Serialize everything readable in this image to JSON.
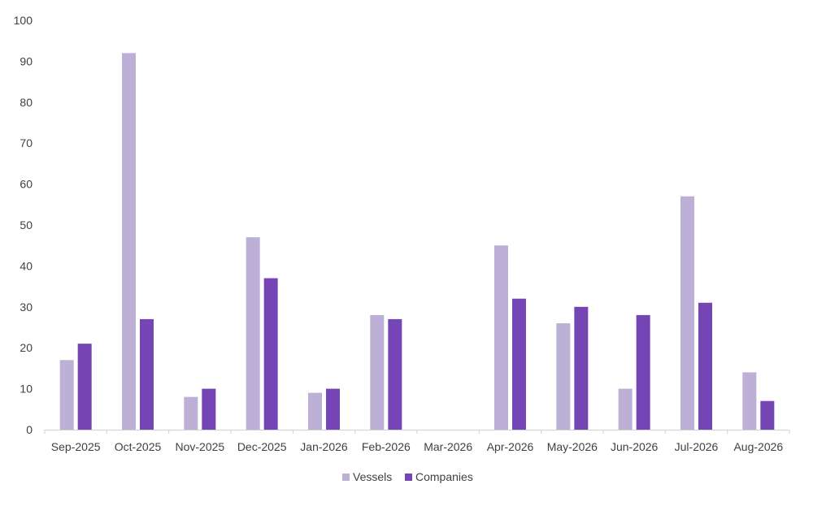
{
  "chart_data": {
    "type": "bar",
    "categories": [
      "Sep-2025",
      "Oct-2025",
      "Nov-2025",
      "Dec-2025",
      "Jan-2026",
      "Feb-2026",
      "Mar-2026",
      "Apr-2026",
      "May-2026",
      "Jun-2026",
      "Jul-2026",
      "Aug-2026"
    ],
    "series": [
      {
        "name": "Vessels",
        "color": "#bcb0d7",
        "values": [
          17,
          92,
          8,
          47,
          9,
          28,
          0,
          45,
          26,
          10,
          57,
          14
        ]
      },
      {
        "name": "Companies",
        "color": "#7545b5",
        "values": [
          21,
          27,
          10,
          37,
          10,
          27,
          0,
          32,
          30,
          28,
          31,
          7
        ]
      }
    ],
    "ylim": [
      0,
      100
    ],
    "yticks": [
      "0",
      "10",
      "20",
      "30",
      "40",
      "50",
      "60",
      "70",
      "80",
      "90",
      "100"
    ],
    "grid": false,
    "legend_position": "bottom"
  }
}
